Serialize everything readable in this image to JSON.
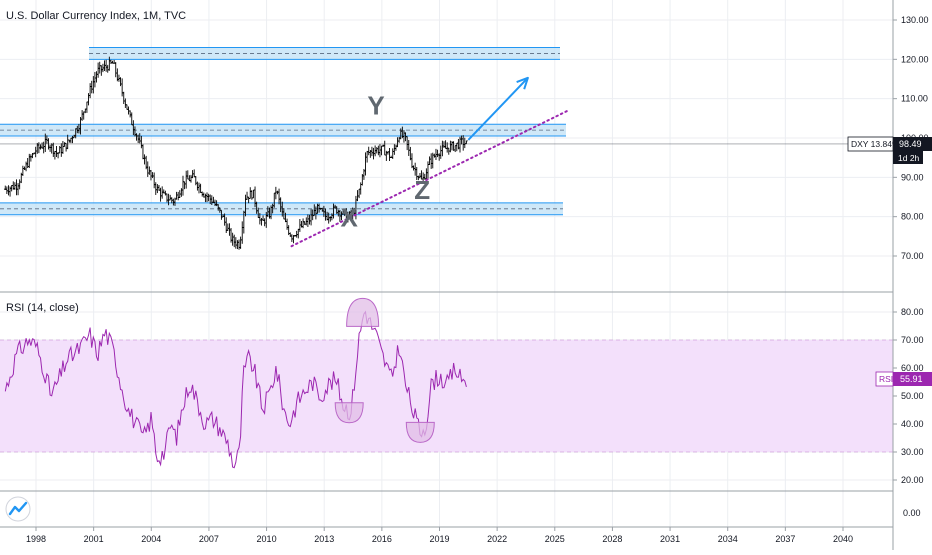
{
  "title": "U.S. Dollar Currency Index, 1M, TVC",
  "indicator_label": "RSI (14, close)",
  "price_badge": {
    "text": "DXY 13.84%",
    "value": "98.49",
    "countdown": "1d 2h"
  },
  "rsi_badge": {
    "text": "RSI",
    "value": "55.91"
  },
  "wave_labels": {
    "x": "X",
    "y": "Y",
    "z": "Z"
  },
  "colors": {
    "price_bars": "#000000",
    "zone_fill": "#bfe0f5",
    "zone_line": "#2196f3",
    "trendline": "#9c27b0",
    "arrow": "#2196f3",
    "rsi_line": "#9c27b0",
    "rsi_band": "#f3e0fb",
    "label_text": "#606870"
  },
  "chart_data": [
    {
      "type": "candlestick",
      "title": "U.S. Dollar Currency Index, 1M, TVC",
      "x_range": [
        1996.3,
        2043.5
      ],
      "x_ticks": [
        {
          "x": 1998,
          "label": "1998"
        },
        {
          "x": 2001,
          "label": "2001"
        },
        {
          "x": 2004,
          "label": "2004"
        },
        {
          "x": 2007,
          "label": "2007"
        },
        {
          "x": 2010,
          "label": "2010"
        },
        {
          "x": 2013,
          "label": "2013"
        },
        {
          "x": 2016,
          "label": "2016"
        },
        {
          "x": 2019,
          "label": "2019"
        },
        {
          "x": 2022,
          "label": "2022"
        },
        {
          "x": 2025,
          "label": "2025"
        },
        {
          "x": 2028,
          "label": "2028"
        },
        {
          "x": 2031,
          "label": "2031"
        },
        {
          "x": 2034,
          "label": "2034"
        },
        {
          "x": 2037,
          "label": "2037"
        },
        {
          "x": 2040,
          "label": "2040"
        }
      ],
      "y_range": [
        63,
        133
      ],
      "y_ticks": [
        {
          "v": 130,
          "label": "130.00"
        },
        {
          "v": 120,
          "label": "120.00"
        },
        {
          "v": 110,
          "label": "110.00"
        },
        {
          "v": 100,
          "label": "100.00"
        },
        {
          "v": 90,
          "label": "90.00"
        },
        {
          "v": 80,
          "label": "80.00"
        },
        {
          "v": 70,
          "label": "70.00"
        }
      ],
      "series": [
        {
          "values": [
            [
              1996.4,
              87
            ],
            [
              1997.0,
              88
            ],
            [
              1997.6,
              94
            ],
            [
              1998.0,
              97
            ],
            [
              1998.6,
              99
            ],
            [
              1999.1,
              96
            ],
            [
              1999.7,
              99
            ],
            [
              2000.3,
              104
            ],
            [
              2000.8,
              112
            ],
            [
              2001.2,
              117
            ],
            [
              2001.6,
              118
            ],
            [
              2002.0,
              119
            ],
            [
              2002.4,
              113
            ],
            [
              2002.9,
              105
            ],
            [
              2003.3,
              100
            ],
            [
              2003.8,
              92
            ],
            [
              2004.3,
              87
            ],
            [
              2004.7,
              85
            ],
            [
              2005.2,
              84
            ],
            [
              2005.7,
              89
            ],
            [
              2006.2,
              90
            ],
            [
              2006.7,
              86
            ],
            [
              2007.2,
              84
            ],
            [
              2007.7,
              80
            ],
            [
              2008.2,
              74
            ],
            [
              2008.6,
              73
            ],
            [
              2008.9,
              85
            ],
            [
              2009.3,
              86
            ],
            [
              2009.7,
              78
            ],
            [
              2010.2,
              81
            ],
            [
              2010.5,
              87
            ],
            [
              2010.9,
              79
            ],
            [
              2011.3,
              75
            ],
            [
              2011.7,
              77
            ],
            [
              2012.2,
              79
            ],
            [
              2012.6,
              82
            ],
            [
              2013.1,
              80
            ],
            [
              2013.6,
              82
            ],
            [
              2014.2,
              80
            ],
            [
              2014.5,
              80.5
            ],
            [
              2014.9,
              88
            ],
            [
              2015.2,
              96
            ],
            [
              2015.6,
              97
            ],
            [
              2016.1,
              97
            ],
            [
              2016.5,
              95
            ],
            [
              2016.9,
              101
            ],
            [
              2017.2,
              100
            ],
            [
              2017.6,
              93
            ],
            [
              2018.1,
              89
            ],
            [
              2018.5,
              94
            ],
            [
              2018.9,
              96.5
            ],
            [
              2019.4,
              97.5
            ],
            [
              2019.8,
              98
            ],
            [
              2020.2,
              99
            ],
            [
              2020.4,
              98.5
            ]
          ]
        }
      ],
      "zones": [
        {
          "low": 120,
          "high": 123
        },
        {
          "low": 100.5,
          "high": 103.5
        },
        {
          "low": 80.5,
          "high": 83.5
        }
      ],
      "trendline": {
        "from": [
          2011.3,
          72.5
        ],
        "to": [
          2025.7,
          107
        ]
      },
      "projection_arrow": {
        "from": [
          2020.5,
          99.5
        ],
        "to": [
          2023.6,
          115.3
        ]
      },
      "wave_markers": [
        {
          "label": "X",
          "at": [
            2014.3,
            77.5
          ]
        },
        {
          "label": "Y",
          "at": [
            2015.7,
            106
          ]
        },
        {
          "label": "Z",
          "at": [
            2018.1,
            84.5
          ]
        }
      ],
      "last_price": 98.49
    },
    {
      "type": "line",
      "title": "RSI (14, close)",
      "y_range": [
        13,
        88
      ],
      "y_ticks": [
        {
          "v": 80,
          "label": "80.00"
        },
        {
          "v": 70,
          "label": "70.00"
        },
        {
          "v": 60,
          "label": "60.00"
        },
        {
          "v": 50,
          "label": "50.00"
        },
        {
          "v": 40,
          "label": "40.00"
        },
        {
          "v": 30,
          "label": "30.00"
        },
        {
          "v": 20,
          "label": "20.00"
        }
      ],
      "band": [
        30,
        70
      ],
      "series": [
        {
          "values": [
            [
              1996.4,
              52
            ],
            [
              1997.0,
              65
            ],
            [
              1997.6,
              70
            ],
            [
              1998.0,
              68
            ],
            [
              1998.4,
              60
            ],
            [
              1998.8,
              50
            ],
            [
              1999.2,
              56
            ],
            [
              1999.6,
              63
            ],
            [
              2000.0,
              65
            ],
            [
              2000.4,
              68
            ],
            [
              2000.8,
              72
            ],
            [
              2001.2,
              65
            ],
            [
              2001.6,
              73
            ],
            [
              2002.0,
              67
            ],
            [
              2002.4,
              55
            ],
            [
              2002.8,
              45
            ],
            [
              2003.2,
              40
            ],
            [
              2003.6,
              35
            ],
            [
              2004.0,
              42
            ],
            [
              2004.3,
              28
            ],
            [
              2004.7,
              30
            ],
            [
              2005.0,
              40
            ],
            [
              2005.3,
              35
            ],
            [
              2005.6,
              45
            ],
            [
              2006.0,
              55
            ],
            [
              2006.4,
              48
            ],
            [
              2006.8,
              40
            ],
            [
              2007.2,
              42
            ],
            [
              2007.6,
              38
            ],
            [
              2008.0,
              33
            ],
            [
              2008.3,
              25
            ],
            [
              2008.6,
              30
            ],
            [
              2008.8,
              58
            ],
            [
              2009.1,
              64
            ],
            [
              2009.4,
              58
            ],
            [
              2009.8,
              45
            ],
            [
              2010.2,
              52
            ],
            [
              2010.5,
              60
            ],
            [
              2010.9,
              45
            ],
            [
              2011.2,
              40
            ],
            [
              2011.6,
              48
            ],
            [
              2012.0,
              52
            ],
            [
              2012.4,
              55
            ],
            [
              2012.8,
              50
            ],
            [
              2013.2,
              54
            ],
            [
              2013.6,
              56
            ],
            [
              2014.0,
              47
            ],
            [
              2014.4,
              44
            ],
            [
              2014.8,
              70
            ],
            [
              2015.1,
              81
            ],
            [
              2015.4,
              76
            ],
            [
              2015.7,
              72
            ],
            [
              2016.0,
              65
            ],
            [
              2016.5,
              56
            ],
            [
              2016.9,
              68
            ],
            [
              2017.2,
              55
            ],
            [
              2017.6,
              45
            ],
            [
              2018.0,
              37
            ],
            [
              2018.3,
              40
            ],
            [
              2018.6,
              55
            ],
            [
              2019.0,
              57
            ],
            [
              2019.4,
              54
            ],
            [
              2019.8,
              60
            ],
            [
              2020.1,
              56
            ],
            [
              2020.4,
              55.9
            ]
          ]
        }
      ],
      "markers": [
        {
          "type": "dome",
          "at": 2015.0,
          "value": 82
        },
        {
          "type": "cup",
          "at": 2014.3,
          "value": 44
        },
        {
          "type": "cup",
          "at": 2018.0,
          "value": 37
        }
      ],
      "last_value": 55.91
    }
  ]
}
